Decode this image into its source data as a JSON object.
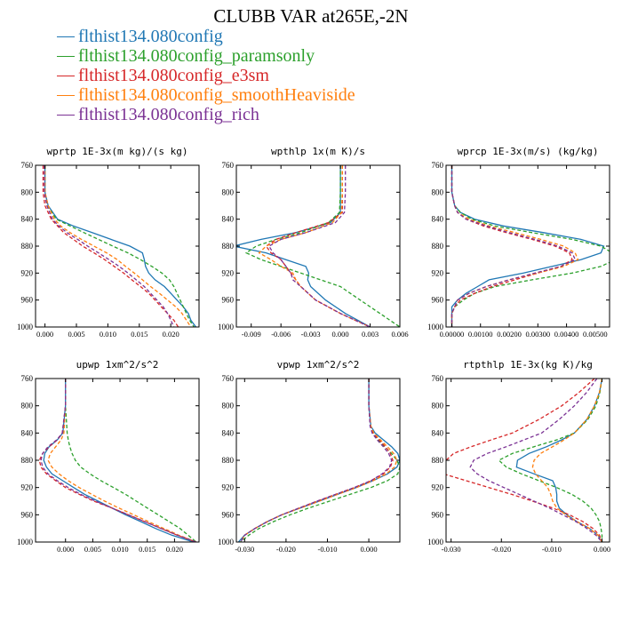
{
  "title": "CLUBB VAR at265E,-2N",
  "legend": [
    {
      "label": "flthist134.080config",
      "color": "#1f77b4",
      "dash": "solid"
    },
    {
      "label": "flthist134.080config_paramsonly",
      "color": "#2ca02c",
      "dash": "dashed"
    },
    {
      "label": "flthist134.080config_e3sm",
      "color": "#d62728",
      "dash": "dashed"
    },
    {
      "label": "flthist134.080config_smoothHeaviside",
      "color": "#ff7f0e",
      "dash": "dashed"
    },
    {
      "label": "flthist134.080config_rich",
      "color": "#7b3294",
      "dash": "dashed"
    }
  ],
  "chart_data": [
    {
      "type": "line",
      "title": "wprtp  1E-3x(m kg)/(s kg)",
      "xlim": [
        -0.0015,
        0.0245
      ],
      "xticks": [
        "0.000",
        "0.005",
        "0.010",
        "0.015",
        "0.020"
      ],
      "ylim": [
        760,
        1000
      ],
      "yticks": [
        760,
        800,
        840,
        880,
        920,
        960,
        1000
      ],
      "y_inverted": true,
      "y": [
        760,
        800,
        820,
        840,
        850,
        860,
        870,
        880,
        890,
        900,
        910,
        920,
        930,
        940,
        950,
        960,
        970,
        980,
        990,
        1000
      ],
      "series": [
        {
          "values": [
            0.0,
            0.0,
            0.0005,
            0.002,
            0.0045,
            0.0075,
            0.0105,
            0.0135,
            0.0155,
            0.0158,
            0.016,
            0.0165,
            0.0175,
            0.019,
            0.02,
            0.021,
            0.022,
            0.0228,
            0.0232,
            0.024
          ]
        },
        {
          "values": [
            0.0,
            0.0,
            0.0004,
            0.0018,
            0.004,
            0.0062,
            0.0085,
            0.0108,
            0.0132,
            0.0152,
            0.017,
            0.0186,
            0.0198,
            0.0205,
            0.021,
            0.0215,
            0.022,
            0.0225,
            0.023,
            0.0237
          ]
        },
        {
          "values": [
            -0.0003,
            -0.0003,
            0.0,
            0.001,
            0.002,
            0.003,
            0.0045,
            0.006,
            0.0078,
            0.0095,
            0.011,
            0.0125,
            0.0138,
            0.0152,
            0.0165,
            0.0175,
            0.0185,
            0.0195,
            0.0205,
            0.0212
          ]
        },
        {
          "values": [
            0.0,
            0.0,
            0.0005,
            0.0015,
            0.0025,
            0.004,
            0.0058,
            0.0078,
            0.0098,
            0.0115,
            0.0128,
            0.0142,
            0.0155,
            0.0168,
            0.0182,
            0.0195,
            0.0208,
            0.0218,
            0.0225,
            0.0232
          ]
        },
        {
          "values": [
            -0.0001,
            -0.0001,
            0.0003,
            0.0012,
            0.0022,
            0.0035,
            0.0052,
            0.0068,
            0.0085,
            0.0102,
            0.0118,
            0.0132,
            0.0145,
            0.0158,
            0.0168,
            0.0178,
            0.0188,
            0.0195,
            0.02,
            0.0205
          ]
        }
      ]
    },
    {
      "type": "line",
      "title": "wpthlp  1x(m K)/s",
      "xlim": [
        -0.0105,
        0.006
      ],
      "xticks": [
        "-0.009",
        "-0.006",
        "-0.003",
        "0.000",
        "0.003",
        "0.006"
      ],
      "ylim": [
        760,
        1000
      ],
      "yticks": [
        760,
        800,
        840,
        880,
        920,
        960,
        1000
      ],
      "y_inverted": true,
      "y": [
        760,
        800,
        830,
        845,
        860,
        870,
        880,
        890,
        900,
        910,
        920,
        930,
        940,
        960,
        980,
        1000
      ],
      "series": [
        {
          "values": [
            0.0,
            0.0,
            0.0,
            -0.001,
            -0.0045,
            -0.008,
            -0.0108,
            -0.0075,
            -0.0055,
            -0.0035,
            -0.0032,
            -0.0033,
            -0.003,
            -0.0015,
            0.0005,
            0.003
          ]
        },
        {
          "values": [
            0.0,
            0.0,
            -0.0001,
            -0.0012,
            -0.004,
            -0.0065,
            -0.0085,
            -0.0095,
            -0.008,
            -0.006,
            -0.004,
            -0.002,
            0.0,
            0.002,
            0.004,
            0.006
          ]
        },
        {
          "values": [
            0.0002,
            0.0002,
            0.0002,
            -0.0012,
            -0.0045,
            -0.0065,
            -0.0075,
            -0.007,
            -0.006,
            -0.0055,
            -0.005,
            -0.0045,
            -0.004,
            -0.0025,
            0.0,
            0.003
          ]
        },
        {
          "values": [
            0.0002,
            0.0002,
            0.0001,
            -0.0008,
            -0.0035,
            -0.006,
            -0.0075,
            -0.0082,
            -0.007,
            -0.006,
            -0.0048,
            -0.0045,
            -0.004,
            -0.0025,
            0.0,
            0.003
          ]
        },
        {
          "values": [
            0.0005,
            0.0005,
            0.0004,
            -0.0005,
            -0.0035,
            -0.006,
            -0.0072,
            -0.0068,
            -0.006,
            -0.0055,
            -0.005,
            -0.0048,
            -0.004,
            -0.0025,
            0.0,
            0.003
          ]
        }
      ]
    },
    {
      "type": "line",
      "title": "wprcp  1E-3x(m/s) (kg/kg)",
      "xlim": [
        -0.0002,
        0.0055
      ],
      "xticks": [
        "0.00000",
        "0.00100",
        "0.00200",
        "0.00300",
        "0.00400",
        "0.00500"
      ],
      "ylim": [
        760,
        1000
      ],
      "yticks": [
        760,
        800,
        840,
        880,
        920,
        960,
        1000
      ],
      "y_inverted": true,
      "y": [
        760,
        800,
        820,
        830,
        840,
        850,
        860,
        870,
        880,
        890,
        900,
        910,
        920,
        930,
        940,
        950,
        960,
        970,
        980,
        1000
      ],
      "series": [
        {
          "values": [
            0.0,
            0.0,
            0.0001,
            0.0003,
            0.0008,
            0.0018,
            0.0032,
            0.0045,
            0.0053,
            0.0052,
            0.0045,
            0.0035,
            0.0025,
            0.0013,
            0.0009,
            0.0005,
            0.0002,
            0.0,
            0.0,
            0.0
          ]
        },
        {
          "values": [
            0.0,
            0.0,
            0.0001,
            0.0003,
            0.0007,
            0.0015,
            0.0028,
            0.0042,
            0.0052,
            0.0056,
            0.0057,
            0.0052,
            0.0042,
            0.0028,
            0.0015,
            0.0008,
            0.0004,
            0.0001,
            0.0,
            0.0
          ]
        },
        {
          "values": [
            0.0,
            0.0,
            0.0001,
            0.0002,
            0.0005,
            0.0011,
            0.0019,
            0.0028,
            0.0036,
            0.0041,
            0.0042,
            0.0038,
            0.003,
            0.0022,
            0.0014,
            0.0008,
            0.0003,
            0.0001,
            0.0,
            0.0
          ]
        },
        {
          "values": [
            0.0,
            0.0,
            0.0001,
            0.0002,
            0.0006,
            0.0013,
            0.0022,
            0.0031,
            0.0039,
            0.0043,
            0.0044,
            0.0039,
            0.003,
            0.002,
            0.0012,
            0.0006,
            0.0002,
            0.0001,
            0.0,
            0.0
          ]
        },
        {
          "values": [
            0.0,
            0.0,
            0.0001,
            0.0002,
            0.0005,
            0.0012,
            0.002,
            0.0029,
            0.0037,
            0.0042,
            0.0043,
            0.0038,
            0.0029,
            0.002,
            0.0012,
            0.0006,
            0.0002,
            0.0001,
            0.0,
            0.0
          ]
        }
      ]
    },
    {
      "type": "line",
      "title": "upwp  1xm^2/s^2",
      "xlim": [
        -0.0055,
        0.0245
      ],
      "xticks": [
        "0.000",
        "0.005",
        "0.010",
        "0.015",
        "0.020"
      ],
      "ylim": [
        760,
        1000
      ],
      "yticks": [
        760,
        800,
        840,
        880,
        920,
        960,
        1000
      ],
      "y_inverted": true,
      "y": [
        760,
        800,
        840,
        850,
        860,
        870,
        880,
        890,
        900,
        910,
        920,
        930,
        940,
        950,
        960,
        970,
        980,
        990,
        1000
      ],
      "series": [
        {
          "values": [
            0.0,
            0.0,
            -0.0005,
            -0.0015,
            -0.003,
            -0.0038,
            -0.004,
            -0.0035,
            -0.0025,
            -0.0005,
            0.0015,
            0.0035,
            0.006,
            0.0085,
            0.011,
            0.0138,
            0.0165,
            0.0195,
            0.0235
          ]
        },
        {
          "values": [
            0.0,
            0.0,
            0.0003,
            0.0005,
            0.0008,
            0.0012,
            0.0018,
            0.0028,
            0.0045,
            0.0065,
            0.0088,
            0.011,
            0.013,
            0.015,
            0.017,
            0.019,
            0.021,
            0.0225,
            0.024
          ]
        },
        {
          "values": [
            0.0,
            0.0,
            -0.0006,
            -0.0015,
            -0.003,
            -0.0042,
            -0.0048,
            -0.0045,
            -0.0035,
            -0.0018,
            0.0,
            0.0025,
            0.0052,
            0.0085,
            0.0115,
            0.0145,
            0.0175,
            0.0205,
            0.024
          ]
        },
        {
          "values": [
            0.0,
            0.0,
            -0.0003,
            -0.0008,
            -0.0018,
            -0.0028,
            -0.0032,
            -0.0025,
            -0.0012,
            0.0005,
            0.0025,
            0.0048,
            0.0072,
            0.0098,
            0.0125,
            0.0152,
            0.018,
            0.0208,
            0.024
          ]
        },
        {
          "values": [
            0.0,
            0.0,
            -0.0006,
            -0.0016,
            -0.0032,
            -0.0042,
            -0.0045,
            -0.0042,
            -0.0032,
            -0.0015,
            0.0005,
            0.0028,
            0.0055,
            0.0085,
            0.0115,
            0.0145,
            0.0175,
            0.0205,
            0.024
          ]
        }
      ]
    },
    {
      "type": "line",
      "title": "vpwp  1xm^2/s^2",
      "xlim": [
        -0.032,
        0.0075
      ],
      "xticks": [
        "-0.030",
        "-0.020",
        "-0.010",
        "0.000"
      ],
      "ylim": [
        760,
        1000
      ],
      "yticks": [
        760,
        800,
        840,
        880,
        920,
        960,
        1000
      ],
      "y_inverted": true,
      "y": [
        760,
        800,
        830,
        840,
        850,
        860,
        870,
        880,
        890,
        900,
        910,
        920,
        930,
        940,
        950,
        960,
        970,
        980,
        990,
        1000
      ],
      "series": [
        {
          "values": [
            0.0,
            0.0,
            0.0005,
            0.0015,
            0.0035,
            0.0055,
            0.007,
            0.0075,
            0.0068,
            0.0045,
            0.001,
            -0.003,
            -0.0075,
            -0.012,
            -0.0165,
            -0.021,
            -0.0245,
            -0.0275,
            -0.03,
            -0.0315
          ]
        },
        {
          "values": [
            0.0,
            0.0,
            0.0004,
            0.001,
            0.0022,
            0.0038,
            0.0055,
            0.0068,
            0.0075,
            0.007,
            0.0045,
            0.0005,
            -0.0045,
            -0.0095,
            -0.0145,
            -0.019,
            -0.023,
            -0.0265,
            -0.029,
            -0.031
          ]
        },
        {
          "values": [
            0.0,
            0.0,
            0.0004,
            0.001,
            0.0025,
            0.004,
            0.0052,
            0.0058,
            0.0052,
            0.0035,
            0.0005,
            -0.0035,
            -0.008,
            -0.0125,
            -0.0168,
            -0.021,
            -0.0245,
            -0.0275,
            -0.03,
            -0.031
          ]
        },
        {
          "values": [
            0.0,
            0.0,
            0.0005,
            0.0012,
            0.0028,
            0.0045,
            0.006,
            0.0068,
            0.0062,
            0.0042,
            0.001,
            -0.003,
            -0.0075,
            -0.012,
            -0.0165,
            -0.021,
            -0.0245,
            -0.0275,
            -0.03,
            -0.031
          ]
        },
        {
          "values": [
            0.0,
            0.0,
            0.0003,
            0.0008,
            0.002,
            0.0035,
            0.0048,
            0.0055,
            0.005,
            0.0032,
            0.0005,
            -0.0035,
            -0.008,
            -0.0125,
            -0.0168,
            -0.021,
            -0.0245,
            -0.0275,
            -0.03,
            -0.031
          ]
        }
      ]
    },
    {
      "type": "line",
      "title": "rtpthlp  1E-3x(kg K)/kg",
      "xlim": [
        -0.031,
        0.0015
      ],
      "xticks": [
        "-0.030",
        "-0.020",
        "-0.010",
        "0.000"
      ],
      "ylim": [
        760,
        1000
      ],
      "yticks": [
        760,
        800,
        840,
        880,
        920,
        960,
        1000
      ],
      "y_inverted": true,
      "y": [
        760,
        780,
        800,
        820,
        840,
        850,
        860,
        870,
        880,
        890,
        900,
        910,
        920,
        930,
        940,
        950,
        960,
        970,
        980,
        990,
        1000
      ],
      "series": [
        {
          "values": [
            0.0,
            -0.0005,
            -0.0015,
            -0.003,
            -0.0055,
            -0.008,
            -0.011,
            -0.0145,
            -0.0168,
            -0.017,
            -0.0135,
            -0.0098,
            -0.0092,
            -0.009,
            -0.009,
            -0.0085,
            -0.007,
            -0.005,
            -0.0025,
            -0.0008,
            0.0
          ]
        },
        {
          "values": [
            0.0,
            -0.0004,
            -0.0012,
            -0.0028,
            -0.0055,
            -0.009,
            -0.0135,
            -0.0178,
            -0.0205,
            -0.019,
            -0.016,
            -0.0125,
            -0.009,
            -0.006,
            -0.0038,
            -0.0022,
            -0.0012,
            -0.0005,
            -0.0002,
            0.0,
            0.0
          ]
        },
        {
          "values": [
            -0.0015,
            -0.0045,
            -0.008,
            -0.0125,
            -0.0178,
            -0.022,
            -0.026,
            -0.0295,
            -0.031,
            -0.0325,
            -0.0315,
            -0.027,
            -0.0225,
            -0.018,
            -0.0138,
            -0.0098,
            -0.0065,
            -0.0038,
            -0.0018,
            -0.0005,
            0.0
          ]
        },
        {
          "values": [
            0.0,
            -0.0005,
            -0.0015,
            -0.003,
            -0.0055,
            -0.0075,
            -0.0098,
            -0.0122,
            -0.0135,
            -0.0138,
            -0.0132,
            -0.012,
            -0.0108,
            -0.0102,
            -0.0098,
            -0.009,
            -0.0072,
            -0.005,
            -0.0025,
            -0.0008,
            0.0
          ]
        },
        {
          "values": [
            -0.001,
            -0.003,
            -0.0055,
            -0.0085,
            -0.012,
            -0.0155,
            -0.019,
            -0.0228,
            -0.0255,
            -0.0262,
            -0.0248,
            -0.0225,
            -0.0195,
            -0.0165,
            -0.0135,
            -0.0105,
            -0.0078,
            -0.0052,
            -0.003,
            -0.0012,
            0.0
          ]
        }
      ]
    }
  ]
}
